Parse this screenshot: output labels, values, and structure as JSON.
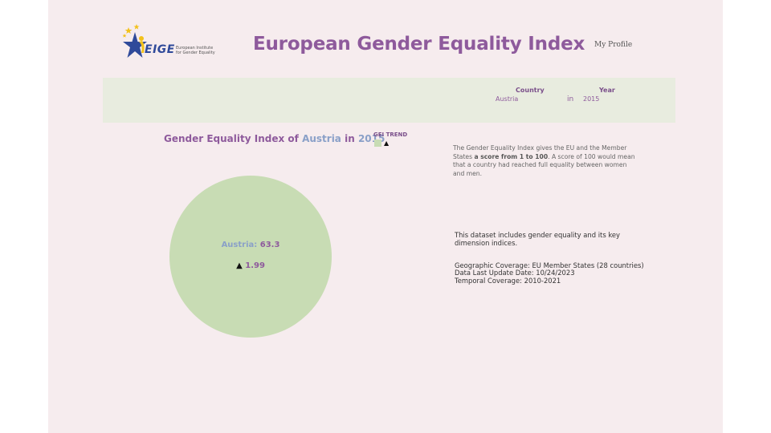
{
  "header": {
    "logo": {
      "word": "EIGE",
      "sub_line1": "European Institute",
      "sub_line2": "for Gender Equality"
    },
    "title": "European Gender Equality Index",
    "profile_link": "My Profile"
  },
  "filters": {
    "country": {
      "label": "Country",
      "value": "Austria"
    },
    "connector": "in",
    "year": {
      "label": "Year",
      "value": "2015"
    }
  },
  "chart": {
    "title_prefix": "Gender Equality Index of",
    "title_country": "Austria",
    "title_in": "in",
    "title_year": "2015",
    "legend_title": "GEI TREND",
    "legend_arrow": "▲",
    "circle_country_label": "Austria:",
    "circle_score": "63.3",
    "circle_trend_arrow": "▲",
    "circle_trend_value": "1.99"
  },
  "chart_data": {
    "type": "pie",
    "title": "Gender Equality Index of Austria in 2015",
    "categories": [
      "Austria"
    ],
    "values": [
      63.3
    ],
    "trend": 1.99,
    "trend_direction": "up",
    "legend": "GEI TREND",
    "colors": {
      "fill": "#c8dcb4",
      "accent": "#8e5a9c",
      "country": "#8aa0c8"
    }
  },
  "description": {
    "part1": "The Gender Equality Index gives the EU and the Member States ",
    "bold": "a score from 1 to 100",
    "part2": ". A score of 100 would mean that a country had reached full equality between women and men."
  },
  "dataset": {
    "intro": "This dataset includes gender equality and its key dimension indices.",
    "coverage": "Geographic Coverage: EU Member States (28 countries)",
    "update": "Data Last Update Date: 10/24/2023",
    "temporal": "Temporal Coverage: 2010-2021"
  },
  "colors": {
    "background": "#f6ecee",
    "title": "#8e5a9c",
    "filter_bar": "#e8ecdf",
    "circle": "#c8dcb4",
    "highlight": "#8aa0c8"
  }
}
